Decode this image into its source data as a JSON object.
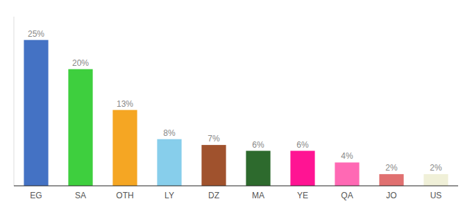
{
  "chart_data": {
    "type": "bar",
    "categories": [
      "EG",
      "SA",
      "OTH",
      "LY",
      "DZ",
      "MA",
      "YE",
      "QA",
      "JO",
      "US"
    ],
    "values": [
      25,
      20,
      13,
      8,
      7,
      6,
      6,
      4,
      2,
      2
    ],
    "value_labels": [
      "25%",
      "20%",
      "13%",
      "8%",
      "7%",
      "6%",
      "6%",
      "4%",
      "2%",
      "2%"
    ],
    "colors": [
      "#4472c4",
      "#3ecf3e",
      "#f5a623",
      "#87ceeb",
      "#a0522d",
      "#2d6a2d",
      "#ff1493",
      "#ff69b4",
      "#e07070",
      "#f0f0d8"
    ],
    "ylim": [
      0,
      29
    ],
    "data_labels": true,
    "tick_labels": "x"
  }
}
